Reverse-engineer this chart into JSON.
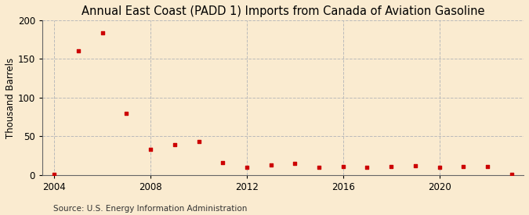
{
  "years": [
    2004,
    2005,
    2006,
    2007,
    2008,
    2009,
    2010,
    2011,
    2012,
    2013,
    2014,
    2015,
    2016,
    2017,
    2018,
    2019,
    2020,
    2021,
    2022,
    2023
  ],
  "values": [
    1,
    161,
    184,
    80,
    33,
    39,
    43,
    16,
    10,
    13,
    15,
    10,
    11,
    10,
    11,
    12,
    10,
    11,
    11,
    1
  ],
  "title": "Annual East Coast (PADD 1) Imports from Canada of Aviation Gasoline",
  "ylabel": "Thousand Barrels",
  "source": "Source: U.S. Energy Information Administration",
  "marker_color": "#cc0000",
  "background_color": "#faebd0",
  "grid_color": "#bbbbbb",
  "ylim": [
    0,
    200
  ],
  "yticks": [
    0,
    50,
    100,
    150,
    200
  ],
  "xlim": [
    2003.5,
    2023.5
  ],
  "xticks": [
    2004,
    2008,
    2012,
    2016,
    2020
  ],
  "title_fontsize": 10.5,
  "label_fontsize": 8.5,
  "tick_fontsize": 8.5,
  "source_fontsize": 7.5
}
